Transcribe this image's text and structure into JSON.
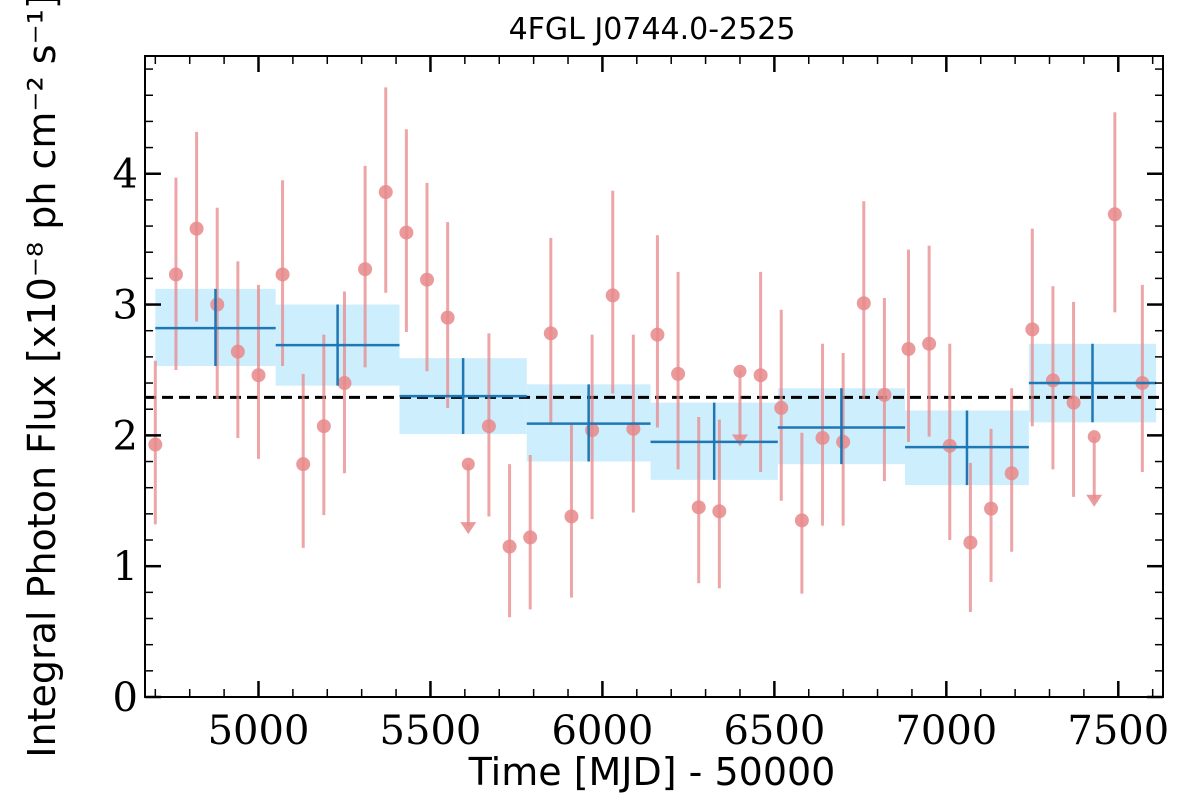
{
  "chart_data": {
    "type": "scatter",
    "title": "4FGL J0744.0-2525",
    "xlabel": "Time [MJD] - 50000",
    "ylabel": "Integral Photon Flux [x10⁻⁸ ph cm⁻² s⁻¹]",
    "xlim": [
      4670,
      7630
    ],
    "ylim": [
      0,
      4.9
    ],
    "xticks": [
      5000,
      5500,
      6000,
      6500,
      7000,
      7500
    ],
    "yticks": [
      0,
      1,
      2,
      3,
      4
    ],
    "grid": false,
    "average_flux": 2.29,
    "colors": {
      "points": "#e8888a",
      "bins": "#1f77b4",
      "bin_band": "#cdeefc",
      "average_line": "#000000"
    },
    "points": [
      {
        "x": 4700,
        "y": 1.93,
        "lo": 1.32,
        "hi": 2.57
      },
      {
        "x": 4760,
        "y": 3.23,
        "lo": 2.5,
        "hi": 3.97
      },
      {
        "x": 4820,
        "y": 3.58,
        "lo": 2.87,
        "hi": 4.32
      },
      {
        "x": 4880,
        "y": 3.0,
        "lo": 2.28,
        "hi": 3.74
      },
      {
        "x": 4940,
        "y": 2.64,
        "lo": 1.98,
        "hi": 3.33
      },
      {
        "x": 5000,
        "y": 2.46,
        "lo": 1.82,
        "hi": 3.15
      },
      {
        "x": 5070,
        "y": 3.23,
        "lo": 2.53,
        "hi": 3.95
      },
      {
        "x": 5130,
        "y": 1.78,
        "lo": 1.14,
        "hi": 2.47
      },
      {
        "x": 5190,
        "y": 2.07,
        "lo": 1.39,
        "hi": 2.77
      },
      {
        "x": 5250,
        "y": 2.4,
        "lo": 1.71,
        "hi": 3.1
      },
      {
        "x": 5310,
        "y": 3.27,
        "lo": 2.52,
        "hi": 4.06
      },
      {
        "x": 5370,
        "y": 3.86,
        "lo": 3.09,
        "hi": 4.66
      },
      {
        "x": 5430,
        "y": 3.55,
        "lo": 2.79,
        "hi": 4.34
      },
      {
        "x": 5490,
        "y": 3.19,
        "lo": 2.49,
        "hi": 3.93
      },
      {
        "x": 5550,
        "y": 2.9,
        "lo": 2.21,
        "hi": 3.63
      },
      {
        "x": 5610,
        "y": 1.78,
        "upper_limit": true,
        "arrow_to": 1.26
      },
      {
        "x": 5670,
        "y": 2.07,
        "lo": 1.38,
        "hi": 2.78
      },
      {
        "x": 5730,
        "y": 1.15,
        "lo": 0.61,
        "hi": 1.78
      },
      {
        "x": 5790,
        "y": 1.22,
        "lo": 0.67,
        "hi": 1.85
      },
      {
        "x": 5850,
        "y": 2.78,
        "lo": 2.08,
        "hi": 3.51
      },
      {
        "x": 5910,
        "y": 1.38,
        "lo": 0.76,
        "hi": 2.09
      },
      {
        "x": 5970,
        "y": 2.04,
        "lo": 1.36,
        "hi": 2.77
      },
      {
        "x": 6030,
        "y": 3.07,
        "lo": 2.32,
        "hi": 3.87
      },
      {
        "x": 6090,
        "y": 2.05,
        "lo": 1.41,
        "hi": 2.77
      },
      {
        "x": 6160,
        "y": 2.77,
        "lo": 2.06,
        "hi": 3.53
      },
      {
        "x": 6220,
        "y": 2.47,
        "lo": 1.74,
        "hi": 3.25
      },
      {
        "x": 6280,
        "y": 1.45,
        "lo": 0.87,
        "hi": 2.14
      },
      {
        "x": 6340,
        "y": 1.42,
        "lo": 0.83,
        "hi": 2.12
      },
      {
        "x": 6400,
        "y": 2.49,
        "upper_limit": true,
        "arrow_to": 1.93
      },
      {
        "x": 6460,
        "y": 2.46,
        "lo": 1.72,
        "hi": 3.25
      },
      {
        "x": 6520,
        "y": 2.21,
        "lo": 1.5,
        "hi": 2.96
      },
      {
        "x": 6580,
        "y": 1.35,
        "lo": 0.79,
        "hi": 2.02
      },
      {
        "x": 6640,
        "y": 1.98,
        "lo": 1.31,
        "hi": 2.7
      },
      {
        "x": 6700,
        "y": 1.95,
        "lo": 1.31,
        "hi": 2.63
      },
      {
        "x": 6760,
        "y": 3.01,
        "lo": 2.28,
        "hi": 3.79
      },
      {
        "x": 6820,
        "y": 2.31,
        "lo": 1.65,
        "hi": 3.05
      },
      {
        "x": 6890,
        "y": 2.66,
        "lo": 1.95,
        "hi": 3.42
      },
      {
        "x": 6950,
        "y": 2.7,
        "lo": 1.99,
        "hi": 3.45
      },
      {
        "x": 7010,
        "y": 1.92,
        "lo": 1.2,
        "hi": 2.7
      },
      {
        "x": 7070,
        "y": 1.18,
        "lo": 0.65,
        "hi": 1.79
      },
      {
        "x": 7130,
        "y": 1.44,
        "lo": 0.88,
        "hi": 2.05
      },
      {
        "x": 7190,
        "y": 1.71,
        "lo": 1.11,
        "hi": 2.36
      },
      {
        "x": 7250,
        "y": 2.81,
        "lo": 2.07,
        "hi": 3.58
      },
      {
        "x": 7310,
        "y": 2.42,
        "lo": 1.74,
        "hi": 3.14
      },
      {
        "x": 7370,
        "y": 2.25,
        "lo": 1.53,
        "hi": 3.02
      },
      {
        "x": 7430,
        "y": 1.99,
        "upper_limit": true,
        "arrow_to": 1.47
      },
      {
        "x": 7490,
        "y": 3.69,
        "lo": 2.94,
        "hi": 4.47
      },
      {
        "x": 7570,
        "y": 2.4,
        "lo": 1.72,
        "hi": 3.15
      }
    ],
    "bins": [
      {
        "x0": 4700,
        "x1": 5050,
        "y": 2.82,
        "lo": 2.53,
        "hi": 3.12
      },
      {
        "x0": 5050,
        "x1": 5410,
        "y": 2.69,
        "lo": 2.38,
        "hi": 3.0
      },
      {
        "x0": 5410,
        "x1": 5780,
        "y": 2.3,
        "lo": 2.01,
        "hi": 2.59
      },
      {
        "x0": 5780,
        "x1": 6140,
        "y": 2.09,
        "lo": 1.8,
        "hi": 2.39
      },
      {
        "x0": 6140,
        "x1": 6510,
        "y": 1.95,
        "lo": 1.66,
        "hi": 2.25
      },
      {
        "x0": 6510,
        "x1": 6880,
        "y": 2.06,
        "lo": 1.78,
        "hi": 2.36
      },
      {
        "x0": 6880,
        "x1": 7240,
        "y": 1.91,
        "lo": 1.62,
        "hi": 2.19
      },
      {
        "x0": 7240,
        "x1": 7610,
        "y": 2.4,
        "lo": 2.1,
        "hi": 2.7
      }
    ]
  }
}
